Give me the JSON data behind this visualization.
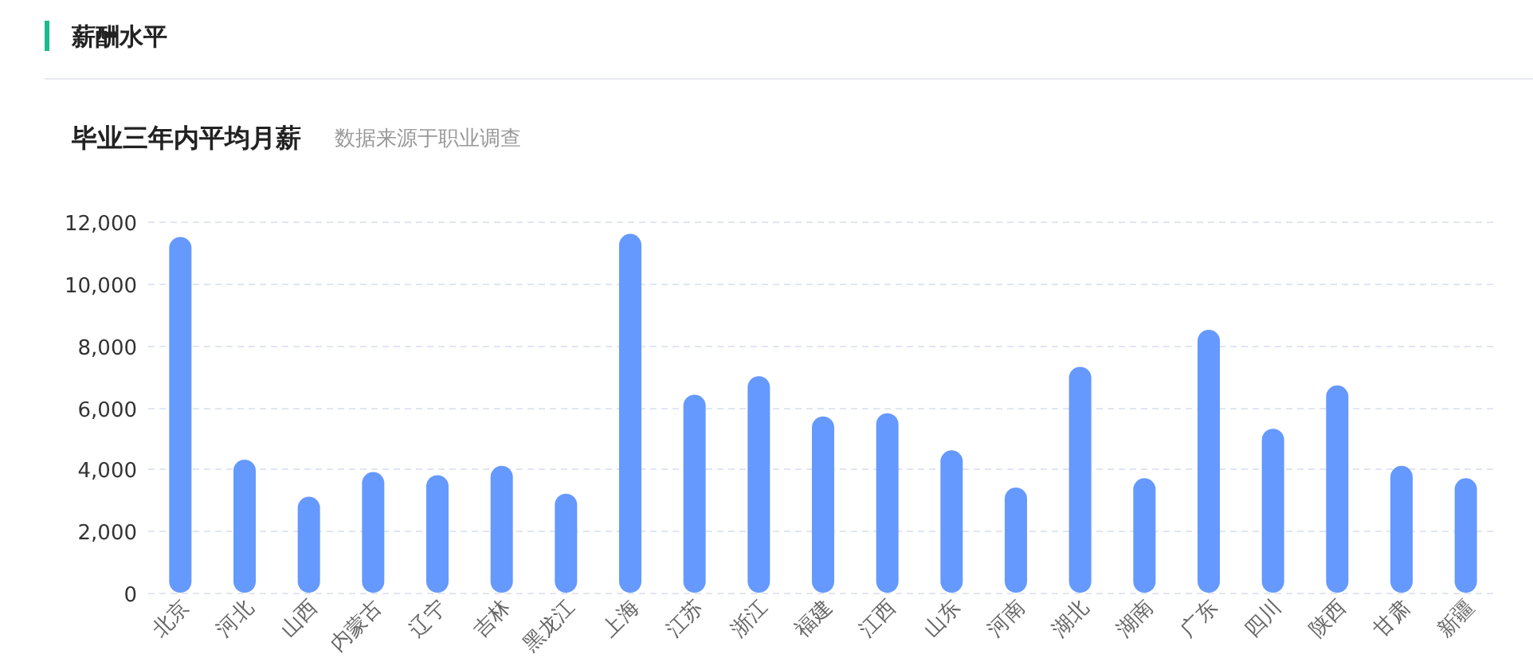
{
  "chart_data": {
    "type": "bar",
    "title": "薪酬水平",
    "subtitle": "毕业三年内平均月薪",
    "annotations": [
      "数据来源于职业调查"
    ],
    "categories": [
      "北京",
      "河北",
      "山西",
      "内蒙古",
      "辽宁",
      "吉林",
      "黑龙江",
      "上海",
      "江苏",
      "浙江",
      "福建",
      "江西",
      "山东",
      "河南",
      "湖北",
      "湖南",
      "广东",
      "四川",
      "陕西",
      "甘肃",
      "新疆"
    ],
    "values": [
      11500,
      4300,
      3100,
      3900,
      3800,
      4100,
      3200,
      11600,
      6400,
      7000,
      5700,
      5800,
      4600,
      3400,
      7300,
      3700,
      8500,
      5300,
      6700,
      4100,
      3700
    ],
    "color": "#6599fd",
    "ylim": [
      0,
      12000
    ],
    "yticks": [
      0,
      {
        "value": 2000,
        "label": "2,000"
      },
      {
        "value": 4000,
        "label": "4,000"
      },
      {
        "value": 6000,
        "label": "6,000"
      },
      {
        "value": 8000,
        "label": "8,000"
      },
      {
        "value": 10000,
        "label": "10,000"
      },
      {
        "value": 12000,
        "label": "12,000"
      }
    ],
    "grid": "y"
  }
}
